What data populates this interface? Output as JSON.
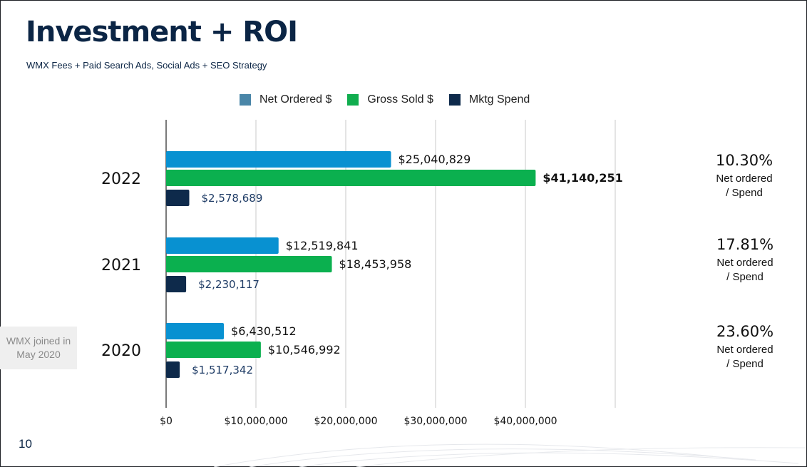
{
  "slide": {
    "title": "Investment + ROI",
    "subtitle": "WMX Fees + Paid Search Ads, Social Ads + SEO Strategy",
    "note": "WMX joined in May 2020",
    "page_number": "10"
  },
  "ratios": [
    {
      "year": "2022",
      "pct": "10.30%",
      "label": "Net ordered / Spend"
    },
    {
      "year": "2021",
      "pct": "17.81%",
      "label": "Net ordered / Spend"
    },
    {
      "year": "2020",
      "pct": "23.60%",
      "label": "Net ordered / Spend"
    }
  ],
  "colors": {
    "net": "#0891d1",
    "gross": "#0bb04f",
    "mktg": "#0e2a4b",
    "net_legend": "#4a86a8",
    "title": "#0b2545"
  },
  "chart_data": {
    "type": "bar",
    "orientation": "horizontal",
    "title": "",
    "xlabel": "",
    "ylabel": "",
    "xlim": [
      0,
      50000000
    ],
    "grid": true,
    "legend_position": "top",
    "categories": [
      "2022",
      "2021",
      "2020"
    ],
    "x_ticks": [
      0,
      10000000,
      20000000,
      30000000,
      40000000
    ],
    "x_tick_labels": [
      "$0",
      "$10,000,000",
      "$20,000,000",
      "$30,000,000",
      "$40,000,000"
    ],
    "series": [
      {
        "name": "Net Ordered $",
        "values": [
          25040829,
          12519841,
          6430512
        ],
        "labels": [
          "$25,040,829",
          "$12,519,841",
          "$6,430,512"
        ]
      },
      {
        "name": "Gross Sold $",
        "values": [
          41140251,
          18453958,
          10546992
        ],
        "labels": [
          "$41,140,251",
          "$18,453,958",
          "$10,546,992"
        ]
      },
      {
        "name": "Mktg Spend",
        "values": [
          2578689,
          2230117,
          1517342
        ],
        "labels": [
          "$2,578,689",
          "$2,230,117",
          "$1,517,342"
        ]
      }
    ]
  }
}
